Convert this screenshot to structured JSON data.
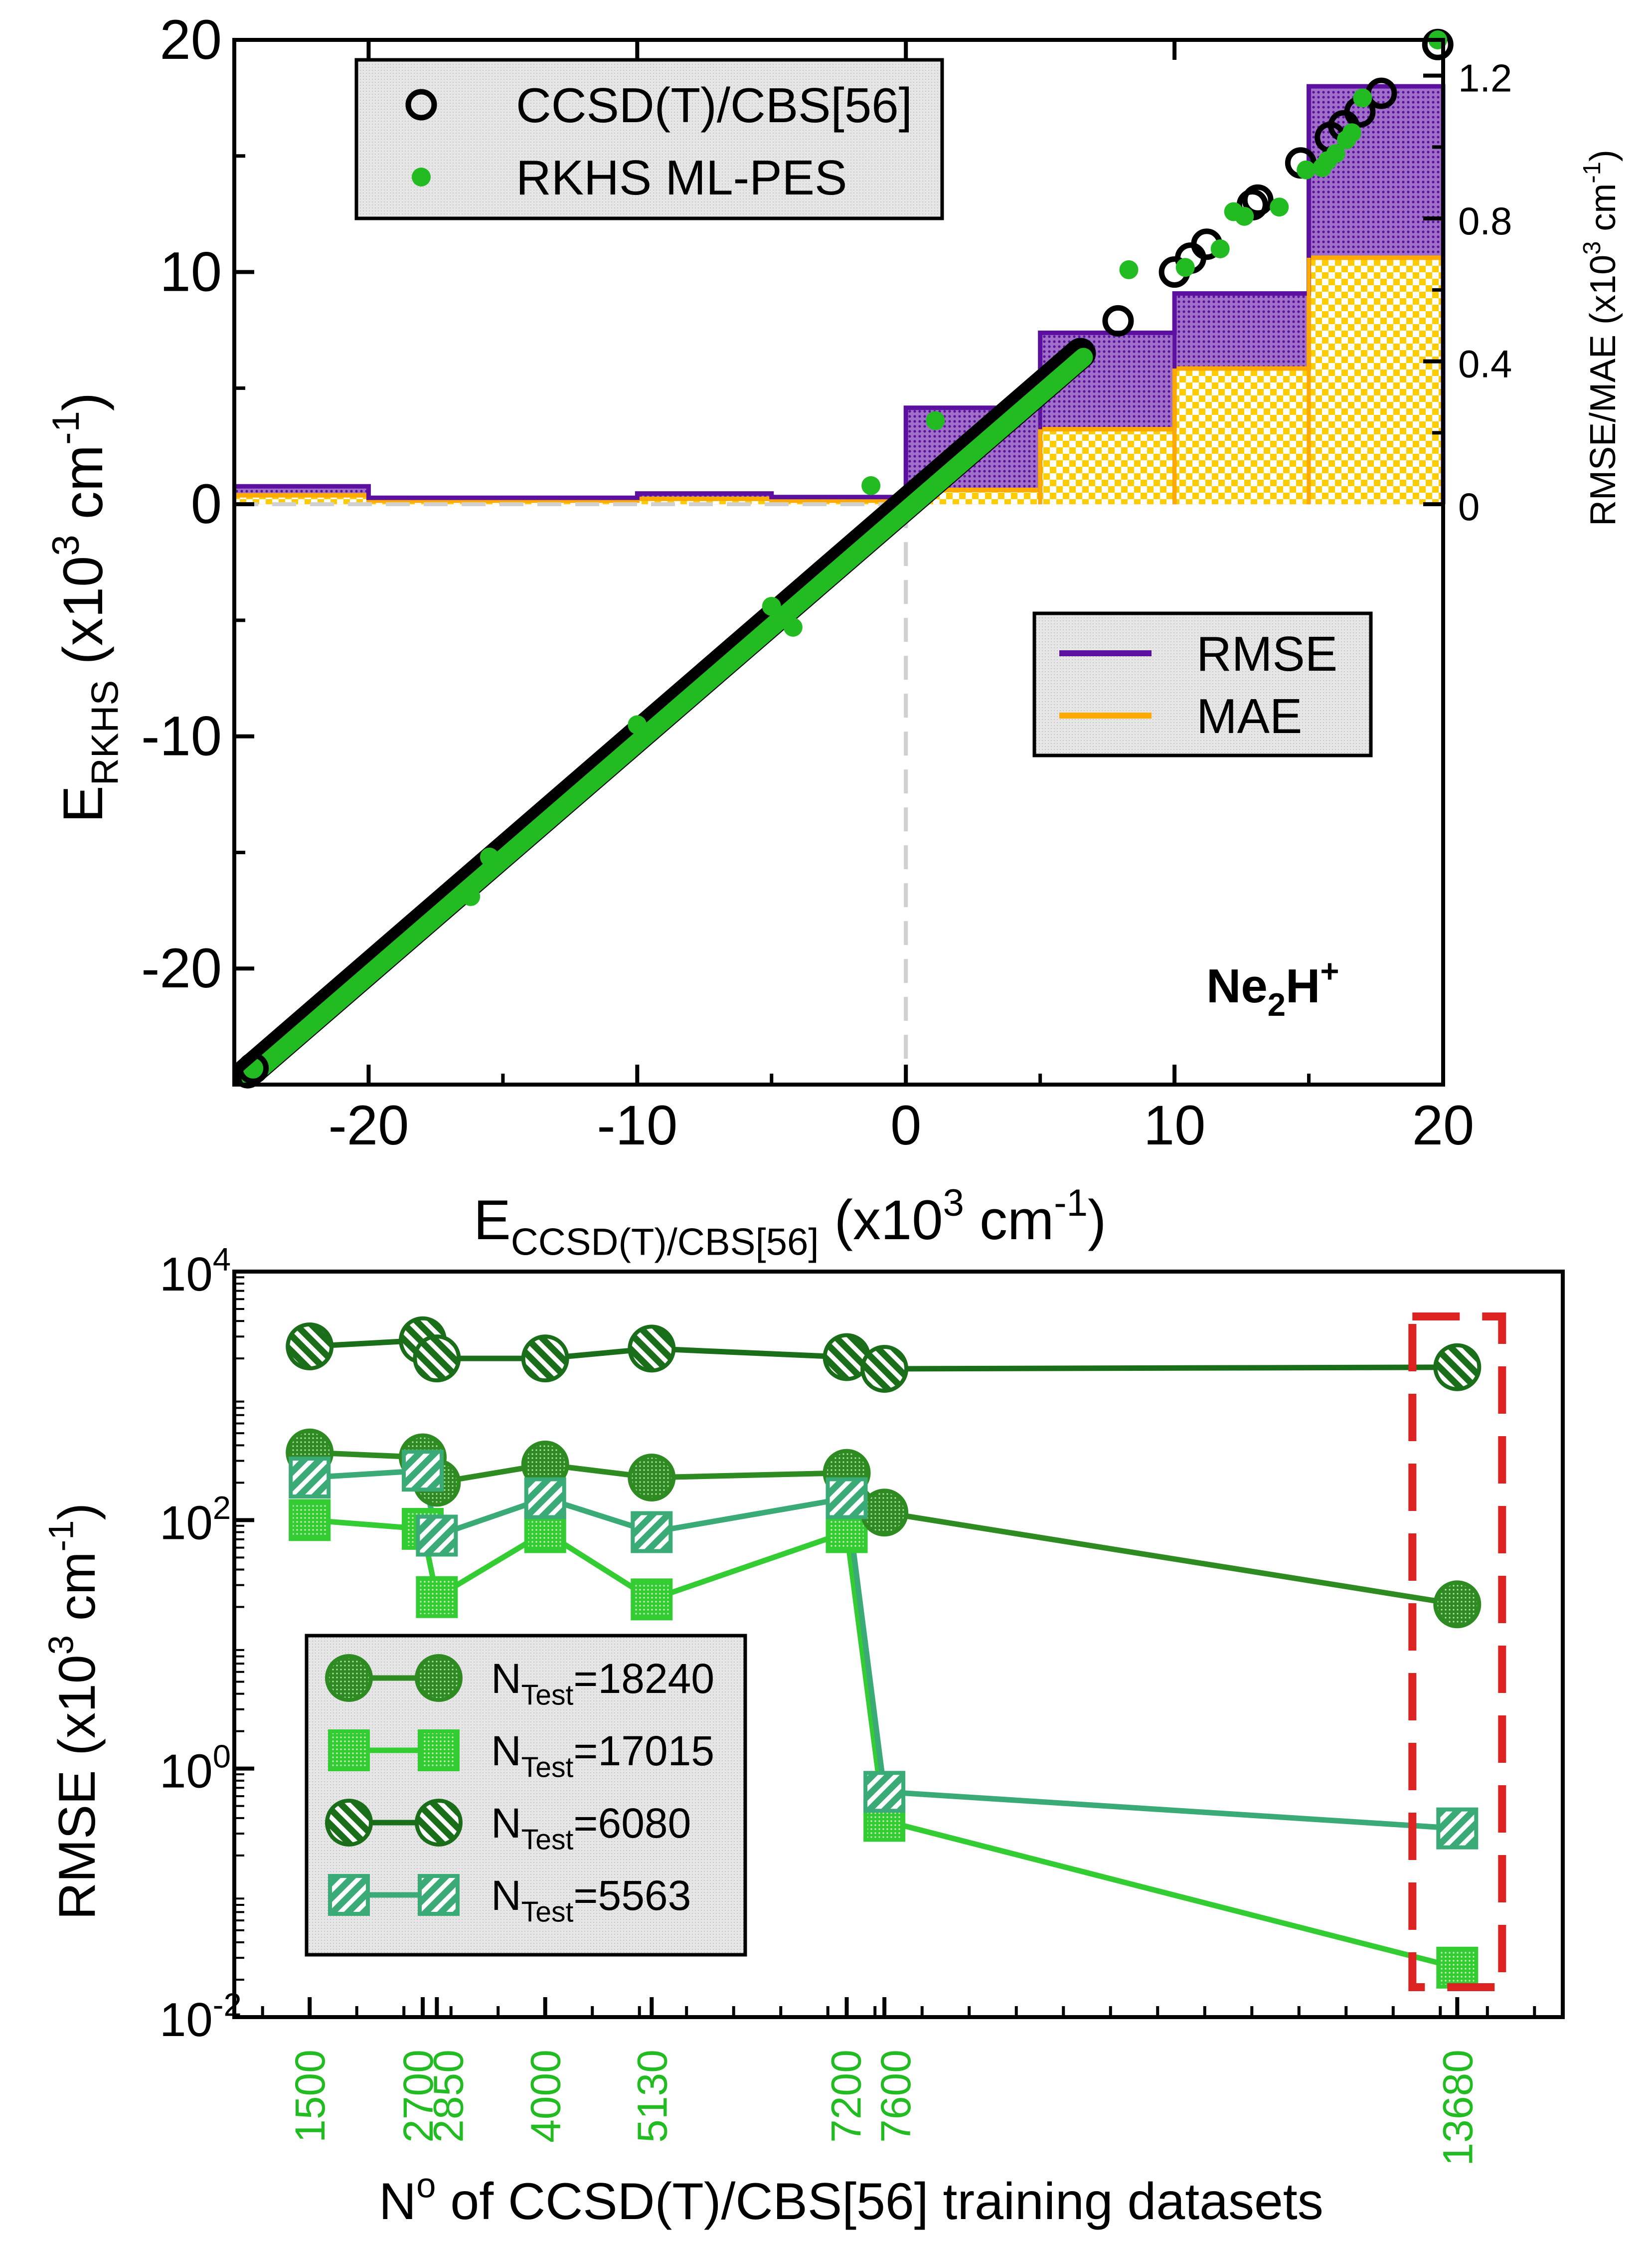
{
  "chart_data": [
    {
      "type": "scatter",
      "subplot": "top",
      "xlabel_main": "E",
      "xlabel_sub": "CCSD(T)/CBS[56]",
      "xlabel_units": "(x10",
      "xlabel_units_exp": "3",
      "xlabel_units_tail": " cm",
      "xlabel_units_exp2": "-1",
      "xlabel_units_close": ")",
      "ylabel_main": "E",
      "ylabel_sub": "RKHS",
      "ylabel_units": "(x10",
      "ylabel_units_exp": "3",
      "ylabel_units_tail": " cm",
      "ylabel_units_exp2": "-1",
      "ylabel_units_close": ")",
      "y2label": "RMSE/MAE (x10",
      "y2label_exp": "3",
      "y2label_tail": " cm",
      "y2label_exp2": "-1",
      "y2label_close": ")",
      "xlim": [
        -25,
        20
      ],
      "ylim": [
        -25,
        20
      ],
      "y2lim": [
        0,
        1.3
      ],
      "xticks": [
        -20,
        -10,
        0,
        10,
        20
      ],
      "xtick_labels": [
        "-20",
        "-10",
        "0",
        "10",
        "20"
      ],
      "yticks": [
        -20,
        -10,
        0,
        10,
        20
      ],
      "ytick_labels": [
        "-20",
        "-10",
        "0",
        "10",
        "20"
      ],
      "y2ticks": [
        0,
        0.4,
        0.8,
        1.2
      ],
      "y2tick_labels": [
        "0",
        "0.4",
        "0.8",
        "1.2"
      ],
      "annotation_main": "Ne",
      "annotation_sub": "2",
      "annotation_mid": "H",
      "annotation_sup": "+",
      "legend_points": [
        {
          "label": "CCSD(T)/CBS[56]",
          "marker": "open-circle",
          "color": "#000000"
        },
        {
          "label": "RKHS ML-PES",
          "marker": "filled-circle",
          "color": "#22bb22"
        }
      ],
      "legend_bars": [
        {
          "label": "RMSE",
          "color": "#5b10a0"
        },
        {
          "label": "MAE",
          "color": "#ffaa00"
        }
      ],
      "scatter_ref_x": [
        -24.3,
        7.9,
        10,
        10.6,
        11.2,
        12.9,
        13.1,
        14.7,
        15.8,
        16.3,
        16.9,
        17.7,
        19.8
      ],
      "scatter_ref_y": [
        -24.3,
        7.9,
        10,
        10.6,
        11.2,
        12.9,
        13.1,
        14.7,
        15.8,
        16.3,
        16.9,
        17.7,
        19.8
      ],
      "scatter_ml_x": [
        -1.3,
        1.1,
        8.3,
        10.4,
        11.7,
        12.2,
        12.6,
        13.9,
        14.9,
        15.5,
        15.7,
        16.0,
        16.4,
        16.6,
        17.0,
        19.8,
        -5,
        -4.2,
        -15.5,
        -16.2,
        -10
      ],
      "scatter_ml_y": [
        0.8,
        3.6,
        10.1,
        10.2,
        11.0,
        12.6,
        12.4,
        12.8,
        14.4,
        14.5,
        14.8,
        15.1,
        15.7,
        16.0,
        17.5,
        20,
        -4.4,
        -5.3,
        -15.2,
        -16.9,
        -9.5
      ],
      "diagonal_range": [
        -24.5,
        6.5
      ],
      "bins": [
        {
          "x0": -25,
          "x1": -20,
          "rmse": 0.05,
          "mae": 0.025
        },
        {
          "x0": -20,
          "x1": -10,
          "rmse": 0.018,
          "mae": 0.01
        },
        {
          "x0": -10,
          "x1": -5,
          "rmse": 0.03,
          "mae": 0.015
        },
        {
          "x0": -5,
          "x1": 0,
          "rmse": 0.02,
          "mae": 0.01
        },
        {
          "x0": 0,
          "x1": 5,
          "rmse": 0.27,
          "mae": 0.04
        },
        {
          "x0": 5,
          "x1": 10,
          "rmse": 0.48,
          "mae": 0.21
        },
        {
          "x0": 10,
          "x1": 15,
          "rmse": 0.59,
          "mae": 0.38
        },
        {
          "x0": 15,
          "x1": 20,
          "rmse": 1.17,
          "mae": 0.69
        }
      ]
    },
    {
      "type": "line",
      "subplot": "bottom",
      "yscale": "log",
      "ylim": [
        0.01,
        10000
      ],
      "xlim": [
        700,
        14800
      ],
      "ylabel": "RMSE (x10",
      "ylabel_exp": "3",
      "ylabel_tail": " cm",
      "ylabel_exp2": "-1",
      "ylabel_close": ")",
      "xlabel_pre": "N",
      "xlabel_sup": "o",
      "xlabel_post": " of CCSD(T)/CBS[56] training datasets",
      "ytick_base": "10",
      "ytick_exps": [
        "-2",
        "0",
        "2",
        "4"
      ],
      "yticks": [
        0.01,
        1,
        100,
        10000
      ],
      "categories": [
        1500,
        2700,
        2850,
        4000,
        5130,
        7200,
        7600,
        13680
      ],
      "category_labels": [
        "1500",
        "2700",
        "2850",
        "4000",
        "5130",
        "7200",
        "7600",
        "13680"
      ],
      "series": [
        {
          "name": "N",
          "name_sub": "Test",
          "name_tail": "=18240",
          "marker": "circle-dotted",
          "color": "#2e8b22",
          "x": [
            1500,
            2700,
            2850,
            4000,
            5130,
            7200,
            7600,
            13680
          ],
          "values": [
            350,
            320,
            200,
            280,
            220,
            240,
            115,
            21
          ]
        },
        {
          "name": "N",
          "name_sub": "Test",
          "name_tail": "=17015",
          "marker": "square-dotted",
          "color": "#33cc33",
          "x": [
            1500,
            2700,
            2850,
            4000,
            5130,
            7200,
            7600,
            13680
          ],
          "values": [
            100,
            85,
            24,
            80,
            23,
            80,
            0.38,
            0.025
          ]
        },
        {
          "name": "N",
          "name_sub": "Test",
          "name_tail": "=6080",
          "marker": "circle-hatched",
          "color": "#1a6e1a",
          "x": [
            1500,
            2700,
            2850,
            4000,
            5130,
            7200,
            7600,
            13680
          ],
          "values": [
            2500,
            2800,
            2000,
            2000,
            2400,
            2050,
            1650,
            1700
          ]
        },
        {
          "name": "N",
          "name_sub": "Test",
          "name_tail": "=5563",
          "marker": "square-hatched",
          "color": "#3aaa77",
          "x": [
            1500,
            2700,
            2850,
            4000,
            5130,
            7200,
            7600,
            13680
          ],
          "values": [
            220,
            250,
            75,
            150,
            80,
            150,
            0.65,
            0.33
          ]
        }
      ],
      "highlight_box": {
        "x": 13680,
        "color": "#dd2222"
      }
    }
  ]
}
